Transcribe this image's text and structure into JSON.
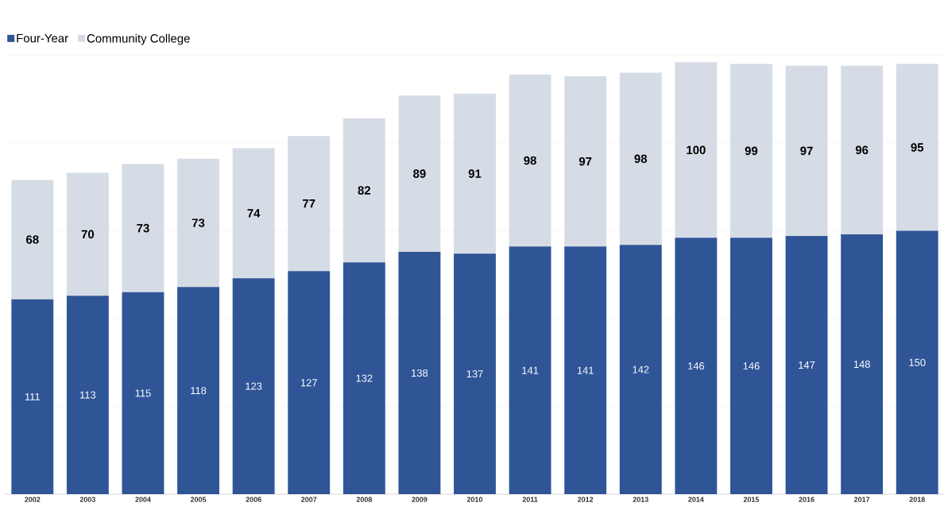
{
  "chart_data": {
    "type": "bar",
    "stacked": true,
    "grid": "y",
    "legend": "top left",
    "tick_labels": "x",
    "categories": [
      "2002",
      "2003",
      "2004",
      "2005",
      "2006",
      "2007",
      "2008",
      "2009",
      "2010",
      "2011",
      "2012",
      "2013",
      "2014",
      "2015",
      "2016",
      "2017",
      "2018"
    ],
    "series": [
      {
        "name": "Four-Year",
        "color": "#2f5597",
        "values": [
          111,
          113,
          115,
          118,
          123,
          127,
          132,
          138,
          137,
          141,
          141,
          142,
          146,
          146,
          147,
          148,
          150
        ],
        "value_labels": [
          "111",
          "113",
          "115",
          "118",
          "123",
          "127",
          "132",
          "138",
          "137",
          "141",
          "141",
          "142",
          "146",
          "146",
          "147",
          "148",
          "150"
        ]
      },
      {
        "name": "Community College",
        "color": "#d6dce5",
        "values": [
          68,
          70,
          73,
          73,
          74,
          77,
          82,
          89,
          91,
          98,
          97,
          98,
          100,
          99,
          97,
          96,
          95
        ],
        "value_labels": [
          "68",
          "70",
          "73",
          "73",
          "74",
          "77",
          "82",
          "89",
          "91",
          "98",
          "97",
          "98",
          "100",
          "99",
          "97",
          "96",
          "95"
        ]
      }
    ]
  }
}
